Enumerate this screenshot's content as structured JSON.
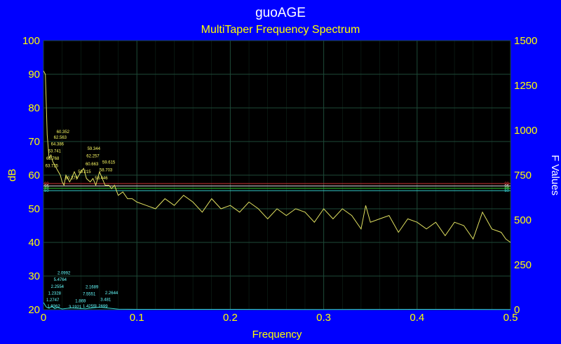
{
  "colors": {
    "background": "#0000ff",
    "plot_background": "#000000",
    "grid": "#1e4a38",
    "spectrum": "#e0e060",
    "fvalues": "#33d0d0",
    "annotation_yellow": "#ffff66",
    "annotation_cyan": "#66ffff",
    "axis_text": "#ffff00"
  },
  "chart_data": {
    "type": "line",
    "title": "guoAGE",
    "subtitle": "MultiTaper Frequency Spectrum",
    "xlabel": "Frequency",
    "ylabel": "dB",
    "ylabel_right": "F Values",
    "xlim": [
      0,
      0.5
    ],
    "ylim": [
      20,
      100
    ],
    "ylim_right": [
      0,
      1500
    ],
    "x_ticks": [
      "0",
      "0.1",
      "0.2",
      "0.3",
      "0.4",
      "0.5"
    ],
    "x_tick_values": [
      0,
      0.1,
      0.2,
      0.3,
      0.4,
      0.5
    ],
    "y_ticks": [
      "20",
      "30",
      "40",
      "50",
      "60",
      "70",
      "80",
      "90",
      "100"
    ],
    "y_tick_values": [
      20,
      30,
      40,
      50,
      60,
      70,
      80,
      90,
      100
    ],
    "y_ticks_right": [
      "0",
      "250",
      "500",
      "750",
      "1000",
      "1250",
      "1500"
    ],
    "y_tick_values_right": [
      0,
      250,
      500,
      750,
      1000,
      1250,
      1500
    ],
    "grid": true,
    "series": [
      {
        "name": "",
        "axis": "left",
        "x": [
          0,
          0.002,
          0.004,
          0.006,
          0.008,
          0.01,
          0.012,
          0.014,
          0.016,
          0.018,
          0.02,
          0.022,
          0.024,
          0.026,
          0.028,
          0.03,
          0.033,
          0.036,
          0.04,
          0.043,
          0.046,
          0.05,
          0.053,
          0.056,
          0.06,
          0.063,
          0.066,
          0.07,
          0.073,
          0.076,
          0.08,
          0.085,
          0.09,
          0.095,
          0.1,
          0.11,
          0.12,
          0.13,
          0.14,
          0.15,
          0.16,
          0.17,
          0.18,
          0.19,
          0.2,
          0.21,
          0.22,
          0.23,
          0.24,
          0.25,
          0.26,
          0.27,
          0.28,
          0.29,
          0.3,
          0.31,
          0.32,
          0.33,
          0.34,
          0.345,
          0.35,
          0.36,
          0.37,
          0.38,
          0.39,
          0.4,
          0.41,
          0.42,
          0.43,
          0.44,
          0.45,
          0.46,
          0.47,
          0.48,
          0.49,
          0.495,
          0.5
        ],
        "y": [
          91,
          90,
          72,
          65,
          66,
          64,
          63,
          62,
          61,
          60,
          58,
          57,
          60,
          59,
          58,
          59,
          61,
          59,
          61,
          62,
          59,
          58,
          59,
          57,
          61,
          59,
          57,
          57,
          56,
          57,
          54,
          55,
          53,
          53,
          52,
          51,
          50,
          53,
          51,
          54,
          52,
          49,
          53,
          50,
          51,
          49,
          52,
          50,
          47,
          50,
          48,
          50,
          49,
          46,
          50,
          47,
          50,
          48,
          44,
          51,
          46,
          47,
          48,
          43,
          47,
          46,
          44,
          46,
          42,
          46,
          45,
          41,
          49,
          44,
          43,
          41,
          40
        ]
      },
      {
        "name": "",
        "axis": "right",
        "x": [
          0,
          0.003,
          0.006,
          0.009,
          0.012,
          0.015,
          0.02,
          0.03,
          0.045,
          0.06,
          0.08,
          0.1,
          0.2,
          0.3,
          0.4,
          0.5
        ],
        "y": [
          40,
          15,
          8,
          20,
          6,
          12,
          4,
          10,
          5,
          14,
          3,
          2,
          2,
          1,
          2,
          1
        ]
      }
    ],
    "reference_lines": [
      {
        "value": 57.5,
        "color": "#cc3333",
        "label": "99"
      },
      {
        "value": 56.8,
        "color": "#dddddd",
        "label": "95"
      },
      {
        "value": 56.1,
        "color": "#33cc33",
        "label": "90"
      },
      {
        "value": 55.4,
        "color": "#33cccc",
        "label": "50"
      }
    ],
    "annotations_spectrum": [
      {
        "text": "60.352",
        "x": 0.014,
        "y": 72.5
      },
      {
        "text": "62.563",
        "x": 0.011,
        "y": 70.8
      },
      {
        "text": "64.386",
        "x": 0.008,
        "y": 68.9
      },
      {
        "text": "63.741",
        "x": 0.005,
        "y": 66.8
      },
      {
        "text": "63.768",
        "x": 0.003,
        "y": 64.6
      },
      {
        "text": "63.725",
        "x": 0.002,
        "y": 62.4
      },
      {
        "text": "60.275",
        "x": 0.023,
        "y": 58.8
      },
      {
        "text": "59.215",
        "x": 0.037,
        "y": 60.6
      },
      {
        "text": "59.344",
        "x": 0.047,
        "y": 67.5
      },
      {
        "text": "62.257",
        "x": 0.046,
        "y": 65.3
      },
      {
        "text": "60.663",
        "x": 0.045,
        "y": 62.9
      },
      {
        "text": "59.615",
        "x": 0.063,
        "y": 63.4
      },
      {
        "text": "58.703",
        "x": 0.06,
        "y": 61.1
      },
      {
        "text": "58.446",
        "x": 0.055,
        "y": 58.7
      }
    ],
    "annotations_fvalues": [
      {
        "text": "2.0992",
        "x": 0.015,
        "y": 30.5
      },
      {
        "text": "5.4764",
        "x": 0.011,
        "y": 28.5
      },
      {
        "text": "2.2554",
        "x": 0.008,
        "y": 26.5
      },
      {
        "text": "1.2328",
        "x": 0.005,
        "y": 24.5
      },
      {
        "text": "1.2747",
        "x": 0.003,
        "y": 22.5
      },
      {
        "text": "1.9362",
        "x": 0.004,
        "y": 20.6
      },
      {
        "text": "3.1921",
        "x": 0.027,
        "y": 20.4
      },
      {
        "text": "1.869",
        "x": 0.034,
        "y": 22.2
      },
      {
        "text": "2.1689",
        "x": 0.045,
        "y": 26.4
      },
      {
        "text": "7.5551",
        "x": 0.042,
        "y": 24.3
      },
      {
        "text": "1.4255",
        "x": 0.042,
        "y": 20.6
      },
      {
        "text": "2.2644",
        "x": 0.066,
        "y": 24.6
      },
      {
        "text": "3.481",
        "x": 0.061,
        "y": 22.6
      },
      {
        "text": "1.2699",
        "x": 0.055,
        "y": 20.6
      }
    ]
  }
}
